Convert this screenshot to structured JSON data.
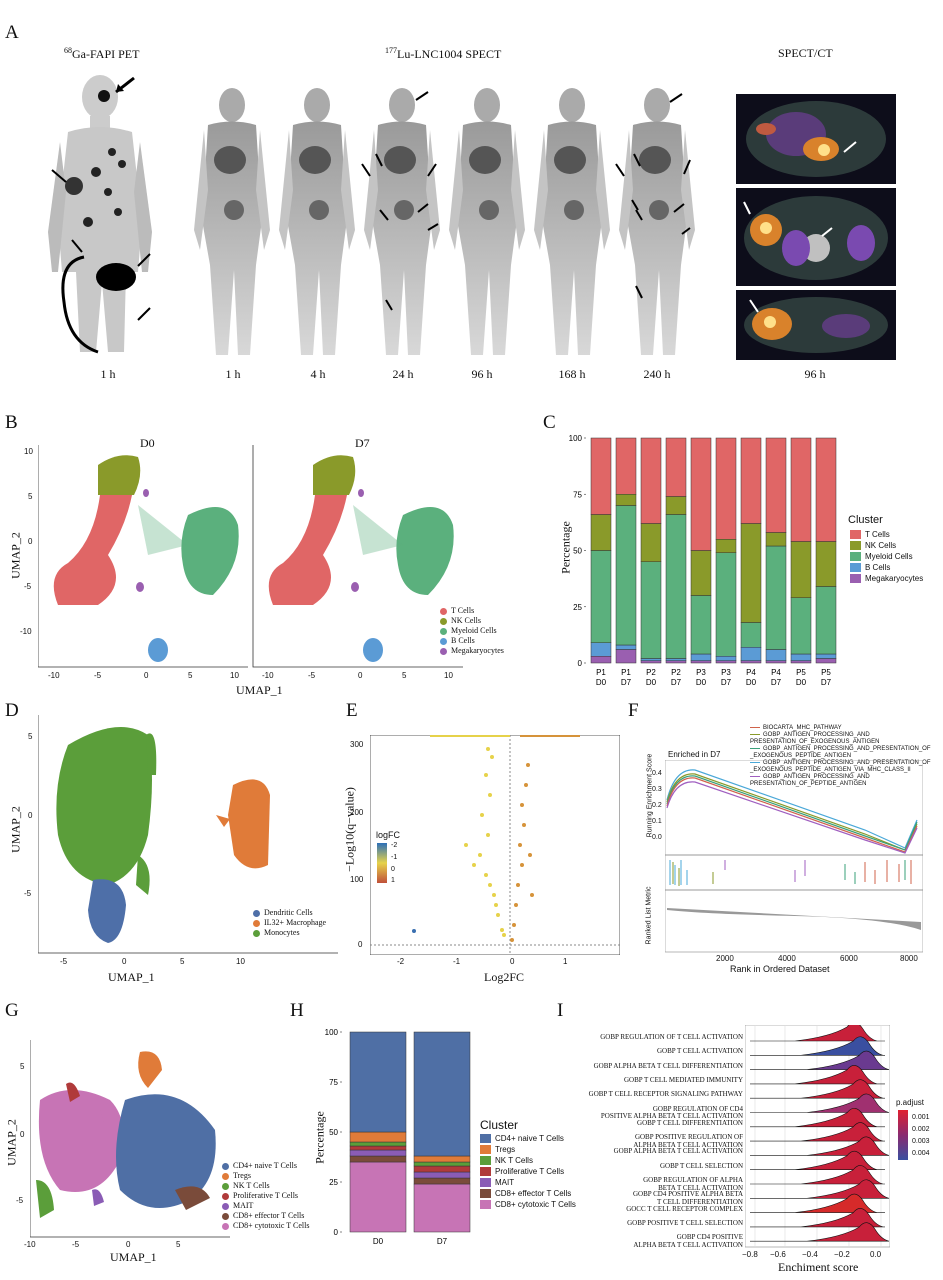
{
  "panels": {
    "A": "A",
    "B": "B",
    "C": "C",
    "D": "D",
    "E": "E",
    "F": "F",
    "G": "G",
    "H": "H",
    "I": "I"
  },
  "panelA": {
    "pet_sup": "68",
    "pet_title": "Ga-FAPI PET",
    "spect_sup": "177",
    "spect_title": "Lu-LNC1004 SPECT",
    "spectct_title": "SPECT/CT",
    "times": [
      "1 h",
      "1 h",
      "4 h",
      "24 h",
      "96 h",
      "168 h",
      "240 h",
      "96 h"
    ]
  },
  "panelB": {
    "d0": "D0",
    "d7": "D7",
    "xlabel": "UMAP_1",
    "ylabel": "UMAP_2",
    "yticks": [
      "10",
      "5",
      "0",
      "-5",
      "-10"
    ],
    "xticks": [
      "-10",
      "-5",
      "0",
      "5",
      "10"
    ],
    "legend": [
      {
        "name": "T Cells",
        "color": "#e06666"
      },
      {
        "name": "NK Cells",
        "color": "#8a9a2a"
      },
      {
        "name": "Myeloid Cells",
        "color": "#5bb07d"
      },
      {
        "name": "B Cells",
        "color": "#5b9bd5"
      },
      {
        "name": "Megakaryocytes",
        "color": "#9a5fb0"
      }
    ]
  },
  "panelD": {
    "xlabel": "UMAP_1",
    "ylabel": "UMAP_2",
    "yticks": [
      "5",
      "0",
      "-5"
    ],
    "xticks": [
      "-5",
      "0",
      "5",
      "10"
    ],
    "legend": [
      {
        "name": "Dendritic Cells",
        "color": "#4e6fa8"
      },
      {
        "name": "IL32+ Macrophage",
        "color": "#e07b39"
      },
      {
        "name": "Monocytes",
        "color": "#5b9e3a"
      }
    ]
  },
  "panelE": {
    "xlabel": "Log2FC",
    "ylabel": "−Log10(q−value)",
    "legend_title": "logFC",
    "legend_ticks": [
      "-2",
      "-1",
      "0",
      "1"
    ],
    "yticks": [
      "300",
      "200",
      "100",
      "0"
    ],
    "xticks": [
      "-2",
      "-1",
      "0",
      "1"
    ]
  },
  "panelF": {
    "ylabel_top": "Running Enrichment Score",
    "ylabel_bottom": "Ranked List Metric",
    "xlabel": "Rank in Ordered Dataset",
    "annotation": "Enriched in D7",
    "xticks": [
      "2000",
      "4000",
      "6000",
      "8000"
    ],
    "yticks": [
      "0.4",
      "0.3",
      "0.2",
      "0.1",
      "0.0"
    ],
    "legend": [
      {
        "name": "BIOCARTA_MHC_PATHWAY",
        "color": "#d0634b"
      },
      {
        "name": "GOBP_ANTIGEN_PROCESSING_AND PRESENTATION_OF_EXOGENOUS_ANTIGEN",
        "color": "#8a9a2a"
      },
      {
        "name": "GOBP_ANTIGEN_PROCESSING_AND_PRESENTATION_OF _EXOGENOUS_PEPTIDE_ANTIGEN",
        "color": "#3aa07a"
      },
      {
        "name": "GOBP_ANTIGEN_PROCESSING_AND_PRESENTATION_OF _EXOGENOUS_PEPTIDE_ANTIGEN_VIA_MHC_CLASS_II",
        "color": "#4aa8d8"
      },
      {
        "name": "GOBP_ANTIGEN_PROCESSING_AND PRESENTATION_OF_PEPTIDE_ANTIGEN",
        "color": "#a05fc0"
      }
    ]
  },
  "panelG": {
    "xlabel": "UMAP_1",
    "ylabel": "UMAP_2",
    "xticks": [
      "-10",
      "-5",
      "0",
      "5"
    ],
    "yticks": [
      "5",
      "0",
      "-5"
    ],
    "legend": [
      {
        "name": "CD4+ naive T Cells",
        "color": "#4f6fa5"
      },
      {
        "name": "Tregs",
        "color": "#e07b39"
      },
      {
        "name": "NK T Cells",
        "color": "#5b9e3a"
      },
      {
        "name": "Proliferative T Cells",
        "color": "#b03a3a"
      },
      {
        "name": "MAIT",
        "color": "#8a5cb5"
      },
      {
        "name": "CD8+ effector T Cells",
        "color": "#7a4b3a"
      },
      {
        "name": "CD8+ cytotoxic T Cells",
        "color": "#c774b5"
      }
    ]
  },
  "panelI": {
    "xlabel": "Enchiment score",
    "legend_title": "p.adjust",
    "legend_ticks": [
      "0.001",
      "0.002",
      "0.003",
      "0.004"
    ],
    "xticks": [
      "−0.8",
      "−0.6",
      "−0.4",
      "−0.2",
      "0.0"
    ],
    "terms": [
      "GOBP REGULATION OF T CELL ACTIVATION",
      "GOBP T CELL ACTIVATION",
      "GOBP ALPHA BETA T CELL DIFFERENTIATION",
      "GOBP T CELL MEDIATED IMMUNITY",
      "GOBP T CELL RECEPTOR SIGNALING PATHWAY",
      "GOBP REGULATION OF CD4\nPOSITIVE ALPHA BETA T CELL ACTIVATION",
      "GOBP T CELL DIFFERENTIATION",
      "GOBP POSITIVE REGULATION OF\nALPHA BETA T CELL ACTIVATION",
      "GOBP ALPHA BETA T CELL ACTIVATION",
      "GOBP T CELL SELECTION",
      "GOBP REGULATION OF ALPHA\nBETA T CELL ACTIVATION",
      "GOBP CD4 POSITIVE ALPHA BETA\nT CELL DIFFERENTIATION",
      "GOCC T CELL RECEPTOR COMPLEX",
      "GOBP POSITIVE T CELL SELECTION",
      "GOBP CD4 POSITIVE\nALPHA BETA T CELL ACTIVATION"
    ],
    "colors": [
      "#c8203a",
      "#3a4fa0",
      "#6a3a90",
      "#c8203a",
      "#c8203a",
      "#a03070",
      "#c8203a",
      "#c8203a",
      "#c8203a",
      "#c8203a",
      "#c8203a",
      "#c8203a",
      "#d62a2a",
      "#c8203a",
      "#c8203a"
    ]
  },
  "chart_data": [
    {
      "type": "bar",
      "id": "C",
      "ylabel": "Percentage",
      "legend_title": "Cluster",
      "ylim": [
        0,
        100
      ],
      "categories": [
        "P1\nD0",
        "P1\nD7",
        "P2\nD0",
        "P2\nD7",
        "P3\nD0",
        "P3\nD7",
        "P4\nD0",
        "P4\nD7",
        "P5\nD0",
        "P5\nD7"
      ],
      "series": [
        {
          "name": "Megakaryocytes",
          "color": "#9a5fb0",
          "values": [
            3,
            6,
            1,
            1,
            1,
            1,
            1,
            1,
            1,
            2
          ]
        },
        {
          "name": "B Cells",
          "color": "#5b9bd5",
          "values": [
            6,
            2,
            1,
            1,
            3,
            2,
            6,
            5,
            3,
            2
          ]
        },
        {
          "name": "Myeloid Cells",
          "color": "#5bb07d",
          "values": [
            41,
            62,
            43,
            64,
            26,
            46,
            11,
            46,
            25,
            30
          ]
        },
        {
          "name": "NK Cells",
          "color": "#8a9a2a",
          "values": [
            16,
            5,
            17,
            8,
            20,
            6,
            44,
            6,
            25,
            20
          ]
        },
        {
          "name": "T Cells",
          "color": "#e06666",
          "values": [
            34,
            25,
            38,
            26,
            50,
            45,
            38,
            42,
            46,
            46
          ]
        }
      ],
      "yticks": [
        "0",
        "25",
        "50",
        "75",
        "100"
      ]
    },
    {
      "type": "bar",
      "id": "H",
      "ylabel": "Percentage",
      "legend_title": "Cluster",
      "ylim": [
        0,
        100
      ],
      "categories": [
        "D0",
        "D7"
      ],
      "series": [
        {
          "name": "CD8+ cytotoxic T Cells",
          "color": "#c774b5",
          "values": [
            35,
            24
          ]
        },
        {
          "name": "CD8+ effector T Cells",
          "color": "#7a4b3a",
          "values": [
            3,
            3
          ]
        },
        {
          "name": "MAIT",
          "color": "#8a5cb5",
          "values": [
            3,
            3
          ]
        },
        {
          "name": "Proliferative T Cells",
          "color": "#b03a3a",
          "values": [
            2,
            3
          ]
        },
        {
          "name": "NK T Cells",
          "color": "#5b9e3a",
          "values": [
            2,
            2
          ]
        },
        {
          "name": "Tregs",
          "color": "#e07b39",
          "values": [
            5,
            3
          ]
        },
        {
          "name": "CD4+ naive T Cells",
          "color": "#4f6fa5",
          "values": [
            50,
            62
          ]
        }
      ],
      "yticks": [
        "0",
        "25",
        "50",
        "75",
        "100"
      ]
    }
  ]
}
